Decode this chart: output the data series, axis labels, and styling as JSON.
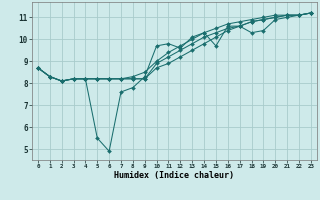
{
  "background_color": "#ceeaea",
  "grid_color": "#a8cccc",
  "line_color": "#1a6e6e",
  "marker_color": "#1a6e6e",
  "xlabel": "Humidex (Indice chaleur)",
  "xlim": [
    -0.5,
    23.5
  ],
  "ylim": [
    4.5,
    11.7
  ],
  "xtick_positions": [
    0,
    1,
    2,
    3,
    4,
    5,
    6,
    7,
    8,
    9,
    10,
    11,
    12,
    13,
    14,
    15,
    16,
    17,
    18,
    19,
    20,
    21,
    22,
    23
  ],
  "xtick_labels": [
    "0",
    "1",
    "2",
    "3",
    "4",
    "5",
    "6",
    "7",
    "8",
    "9",
    "10",
    "11",
    "12",
    "13",
    "14",
    "15",
    "16",
    "17",
    "18",
    "19",
    "20",
    "21",
    "22",
    "23"
  ],
  "ytick_positions": [
    5,
    6,
    7,
    8,
    9,
    10,
    11
  ],
  "ytick_labels": [
    "5",
    "6",
    "7",
    "8",
    "9",
    "10",
    "11"
  ],
  "series": [
    [
      8.7,
      8.3,
      8.1,
      8.2,
      8.2,
      5.5,
      4.9,
      7.6,
      7.8,
      8.3,
      9.7,
      9.8,
      9.6,
      10.1,
      10.3,
      9.7,
      10.6,
      10.6,
      10.3,
      10.4,
      10.9,
      11.0,
      11.1,
      11.2
    ],
    [
      8.7,
      8.3,
      8.1,
      8.2,
      8.2,
      8.2,
      8.2,
      8.2,
      8.2,
      8.2,
      8.9,
      9.2,
      9.5,
      9.8,
      10.1,
      10.3,
      10.5,
      10.6,
      10.8,
      10.9,
      11.0,
      11.1,
      11.1,
      11.2
    ],
    [
      8.7,
      8.3,
      8.1,
      8.2,
      8.2,
      8.2,
      8.2,
      8.2,
      8.2,
      8.2,
      8.7,
      8.9,
      9.2,
      9.5,
      9.8,
      10.1,
      10.4,
      10.6,
      10.8,
      10.9,
      11.0,
      11.1,
      11.1,
      11.2
    ],
    [
      8.7,
      8.3,
      8.1,
      8.2,
      8.2,
      8.2,
      8.2,
      8.2,
      8.3,
      8.5,
      9.0,
      9.4,
      9.7,
      10.0,
      10.3,
      10.5,
      10.7,
      10.8,
      10.9,
      11.0,
      11.1,
      11.1,
      11.1,
      11.2
    ]
  ]
}
